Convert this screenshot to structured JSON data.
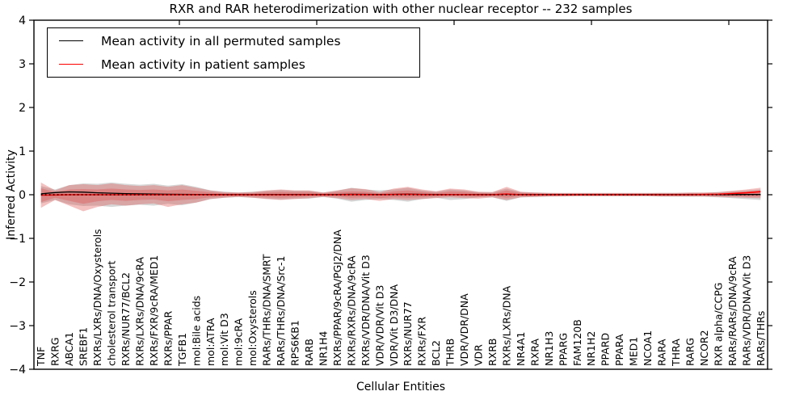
{
  "chart_data": {
    "type": "line",
    "title": "RXR and RAR heterodimerization with other nuclear receptor -- 232 samples",
    "xlabel": "Cellular Entities",
    "ylabel": "Inferred Activity",
    "ylim": [
      -4,
      4
    ],
    "y_tick_values": [
      4,
      3,
      2,
      1,
      0,
      -1,
      -2,
      -3,
      -4
    ],
    "y_tick_labels": [
      "4",
      "3",
      "2",
      "1",
      "0",
      "−1",
      "−2",
      "−3",
      "−4"
    ],
    "grid": false,
    "legend_position": "upper left",
    "categories": [
      "TNF",
      "RXRG",
      "ABCA1",
      "SREBF1",
      "RXRs/LXRs/DNA/Oxysterols",
      "cholesterol transport",
      "RXRs/NUR77/BCL2",
      "RXRs/LXRs/DNA/9cRA",
      "RXRs/FXR/9cRA/MED1",
      "RXRs/PPAR",
      "TGFB1",
      "mol:Bile acids",
      "mol:ATRA",
      "mol:Vit D3",
      "mol:9cRA",
      "mol:Oxysterols",
      "RARs/THRs/DNA/SMRT",
      "RARs/THRs/DNA/Src-1",
      "RPS6KB1",
      "RARB",
      "NR1H4",
      "RXRs/PPAR/9cRA/PGJ2/DNA",
      "RXRs/RXRs/DNA/9cRA",
      "RXRs/VDR/DNA/Vit D3",
      "VDR/VDR/Vit D3",
      "VDR/Vit D3/DNA",
      "RXRs/NUR77",
      "RXRs/FXR",
      "BCL2",
      "THRB",
      "VDR/VDR/DNA",
      "VDR",
      "RXRB",
      "RXRs/LXRs/DNA",
      "NR4A1",
      "RXRA",
      "NR1H3",
      "PPARG",
      "FAM120B",
      "NR1H2",
      "PPARD",
      "PPARA",
      "MED1",
      "NCOA1",
      "RARA",
      "THRA",
      "RARG",
      "NCOR2",
      "RXR alpha/CCPG",
      "RARs/RARs/DNA/9cRA",
      "RARs/VDR/DNA/Vit D3",
      "RARs/THRs"
    ],
    "series": [
      {
        "name": "Mean activity in all permuted samples",
        "color": "#000000",
        "values": [
          0.02,
          0.05,
          0.065,
          0.06,
          0.045,
          0.035,
          0.025,
          0.02,
          0.015,
          0.012,
          0.01,
          0.008,
          0.006,
          0.005,
          0.004,
          0.004,
          0.005,
          0.006,
          0.005,
          0.004,
          0.003,
          0.006,
          0.012,
          0.01,
          0.005,
          0.01,
          0.015,
          0.01,
          0.006,
          0.008,
          0.006,
          0.004,
          0.004,
          0.012,
          0.004,
          0.003,
          0.003,
          0.003,
          0.003,
          0.003,
          0.003,
          0.003,
          0.003,
          0.003,
          0.003,
          0.003,
          0.003,
          0.003,
          0.004,
          0.004,
          0.005,
          0.006
        ]
      },
      {
        "name": "Mean activity in patient samples",
        "color": "#ff0000",
        "values": [
          -0.01,
          -0.005,
          0,
          0,
          0,
          0,
          0,
          0,
          0,
          0,
          0,
          0,
          0,
          0,
          0,
          0,
          0,
          0,
          0,
          0,
          0,
          0,
          0.005,
          0.004,
          0,
          0.005,
          0.01,
          0.004,
          0,
          0.004,
          0.003,
          0,
          0,
          0.015,
          0,
          0,
          0,
          0,
          0,
          0,
          0,
          0,
          0,
          0,
          0,
          0,
          0,
          0.005,
          0.012,
          0.025,
          0.045,
          0.07
        ]
      }
    ],
    "bands": [
      {
        "name": "permuted samples std band",
        "color": "#8a8a8a",
        "opacity": 0.35,
        "upper": [
          0.2,
          0.12,
          0.22,
          0.26,
          0.25,
          0.28,
          0.25,
          0.23,
          0.25,
          0.21,
          0.24,
          0.18,
          0.1,
          0.07,
          0.05,
          0.07,
          0.09,
          0.11,
          0.09,
          0.09,
          0.05,
          0.09,
          0.16,
          0.12,
          0.1,
          0.12,
          0.16,
          0.1,
          0.07,
          0.12,
          0.1,
          0.06,
          0.06,
          0.14,
          0.06,
          0.05,
          0.04,
          0.035,
          0.035,
          0.035,
          0.035,
          0.035,
          0.035,
          0.035,
          0.04,
          0.04,
          0.045,
          0.045,
          0.06,
          0.08,
          0.1,
          0.12
        ],
        "lower": [
          -0.2,
          -0.12,
          -0.22,
          -0.26,
          -0.25,
          -0.28,
          -0.25,
          -0.23,
          -0.25,
          -0.21,
          -0.24,
          -0.18,
          -0.1,
          -0.07,
          -0.05,
          -0.07,
          -0.09,
          -0.11,
          -0.09,
          -0.09,
          -0.05,
          -0.09,
          -0.16,
          -0.12,
          -0.1,
          -0.12,
          -0.16,
          -0.1,
          -0.07,
          -0.12,
          -0.1,
          -0.06,
          -0.06,
          -0.14,
          -0.06,
          -0.05,
          -0.04,
          -0.035,
          -0.035,
          -0.035,
          -0.035,
          -0.035,
          -0.035,
          -0.035,
          -0.04,
          -0.04,
          -0.045,
          -0.045,
          -0.06,
          -0.08,
          -0.1,
          -0.12
        ]
      },
      {
        "name": "patient samples std band",
        "color": "#e04a4a",
        "opacity": 0.35,
        "upper": [
          0.28,
          0.1,
          0.22,
          0.24,
          0.22,
          0.26,
          0.22,
          0.2,
          0.22,
          0.18,
          0.22,
          0.16,
          0.1,
          0.06,
          0.05,
          0.06,
          0.1,
          0.12,
          0.1,
          0.1,
          0.05,
          0.1,
          0.15,
          0.13,
          0.06,
          0.14,
          0.18,
          0.12,
          0.08,
          0.14,
          0.12,
          0.07,
          0.06,
          0.18,
          0.07,
          0.05,
          0.04,
          0.04,
          0.04,
          0.04,
          0.04,
          0.04,
          0.04,
          0.04,
          0.04,
          0.04,
          0.05,
          0.05,
          0.06,
          0.09,
          0.12,
          0.16
        ],
        "lower": [
          -0.3,
          -0.12,
          -0.25,
          -0.38,
          -0.28,
          -0.22,
          -0.25,
          -0.22,
          -0.2,
          -0.28,
          -0.22,
          -0.18,
          -0.1,
          -0.07,
          -0.05,
          -0.07,
          -0.1,
          -0.12,
          -0.1,
          -0.08,
          -0.05,
          -0.08,
          -0.12,
          -0.1,
          -0.14,
          -0.1,
          -0.12,
          -0.1,
          -0.08,
          -0.06,
          -0.08,
          -0.09,
          -0.06,
          -0.12,
          -0.06,
          -0.05,
          -0.04,
          -0.04,
          -0.03,
          -0.03,
          -0.03,
          -0.03,
          -0.03,
          -0.03,
          -0.04,
          -0.04,
          -0.04,
          -0.04,
          -0.05,
          -0.06,
          -0.07,
          -0.08
        ]
      },
      {
        "name": "patient samples inner band",
        "color": "#e04a4a",
        "opacity": 0.35,
        "upper": [
          0.15,
          0.06,
          0.12,
          0.13,
          0.12,
          0.14,
          0.12,
          0.11,
          0.12,
          0.1,
          0.12,
          0.09,
          0.06,
          0.03,
          0.03,
          0.03,
          0.06,
          0.07,
          0.06,
          0.06,
          0.03,
          0.06,
          0.08,
          0.07,
          0.03,
          0.08,
          0.1,
          0.07,
          0.04,
          0.08,
          0.07,
          0.04,
          0.03,
          0.1,
          0.04,
          0.03,
          0.02,
          0.02,
          0.02,
          0.02,
          0.02,
          0.02,
          0.02,
          0.02,
          0.02,
          0.02,
          0.03,
          0.03,
          0.03,
          0.05,
          0.07,
          0.09
        ],
        "lower": [
          -0.17,
          -0.07,
          -0.14,
          -0.21,
          -0.15,
          -0.12,
          -0.14,
          -0.12,
          -0.11,
          -0.15,
          -0.12,
          -0.1,
          -0.06,
          -0.04,
          -0.03,
          -0.04,
          -0.06,
          -0.07,
          -0.06,
          -0.04,
          -0.03,
          -0.04,
          -0.07,
          -0.06,
          -0.08,
          -0.06,
          -0.07,
          -0.06,
          -0.04,
          -0.03,
          -0.04,
          -0.05,
          -0.03,
          -0.07,
          -0.03,
          -0.03,
          -0.02,
          -0.02,
          -0.02,
          -0.02,
          -0.02,
          -0.02,
          -0.02,
          -0.02,
          -0.02,
          -0.02,
          -0.02,
          -0.02,
          -0.03,
          -0.03,
          -0.04,
          -0.04
        ]
      }
    ],
    "reference_line": {
      "y": 0,
      "color": "#000000",
      "style": "dotted"
    }
  },
  "legend": {
    "entries": [
      {
        "label": "Mean activity in all permuted samples",
        "color": "#000000"
      },
      {
        "label": "Mean activity in patient samples",
        "color": "#ff0000"
      }
    ]
  }
}
